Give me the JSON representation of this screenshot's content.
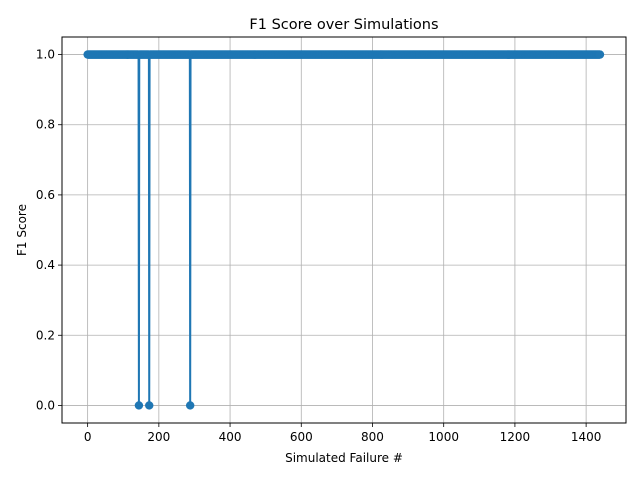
{
  "chart_data": {
    "type": "line",
    "title": "F1 Score over Simulations",
    "xlabel": "Simulated Failure #",
    "ylabel": "F1 Score",
    "xlim": [
      -72,
      1512
    ],
    "ylim": [
      -0.05,
      1.05
    ],
    "x_ticks": [
      0,
      200,
      400,
      600,
      800,
      1000,
      1200,
      1400
    ],
    "y_ticks": [
      0.0,
      0.2,
      0.4,
      0.6,
      0.8,
      1.0
    ],
    "x_tick_labels": [
      "0",
      "200",
      "400",
      "600",
      "800",
      "1000",
      "1200",
      "1400"
    ],
    "y_tick_labels": [
      "0.0",
      "0.2",
      "0.4",
      "0.6",
      "0.8",
      "1.0"
    ],
    "grid": true,
    "legend": "none",
    "color": "#1f77b4",
    "markers": true,
    "series": [
      {
        "x_start": 0,
        "x_end": 1439,
        "baseline": 1.0,
        "dips": [
          {
            "x": 144,
            "y": 0.0
          },
          {
            "x": 173,
            "y": 0.0
          },
          {
            "x": 288,
            "y": 0.0
          }
        ]
      }
    ]
  }
}
